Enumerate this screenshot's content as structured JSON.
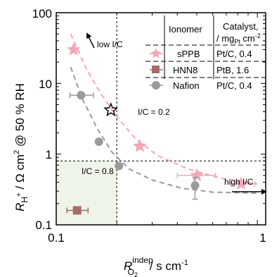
{
  "chart_data": {
    "type": "scatter",
    "xscale": "log",
    "yscale": "log",
    "xlim": [
      0.1,
      1.1
    ],
    "ylim": [
      0.1,
      100
    ],
    "x_ticks": [
      "0.1",
      "1"
    ],
    "y_ticks": [
      "0.1",
      "1",
      "10",
      "100"
    ],
    "xlabel": {
      "main": "R",
      "sub": "O",
      "sub2": "2",
      "sup": "indep",
      "unit": " /  s cm",
      "unit_sup": "-1"
    },
    "ylabel": {
      "main": "R",
      "sub": "H",
      "sub_sup": "+",
      "unit": " / Ω cm",
      "unit_sup": "2",
      "tail": " @ 50 % RH"
    },
    "legend": {
      "headers": {
        "ionomer": "Ionomer",
        "catalyst_line1": "Catalyst,",
        "catalyst_line2_a": "/ mg",
        "catalyst_line2_sub": "Pt",
        "catalyst_line2_b": " cm",
        "catalyst_line2_sup": "-2"
      },
      "rows": [
        {
          "name": "sPPB",
          "catalyst": "Pt/C, 0.4"
        },
        {
          "name": "HNN8",
          "catalyst": "PtB,  1.6"
        },
        {
          "name": "Nafion",
          "catalyst": "Pt/C, 0.4"
        }
      ]
    },
    "series": [
      {
        "name": "sPPB",
        "color": "#f4a7b9",
        "marker": "star",
        "points": [
          {
            "x": 0.122,
            "y": 30
          },
          {
            "x": 0.187,
            "y": 4.2,
            "highlight": true
          },
          {
            "x": 0.26,
            "y": 1.3
          },
          {
            "x": 0.5,
            "y": 0.5,
            "xerr": [
              0.4,
              0.62
            ]
          },
          {
            "x": 0.83,
            "y": 0.38,
            "xerr": [
              0.74,
              0.97
            ]
          }
        ],
        "fit": [
          [
            0.118,
            50
          ],
          [
            0.14,
            17
          ],
          [
            0.165,
            7.5
          ],
          [
            0.2,
            3.4
          ],
          [
            0.25,
            1.6
          ],
          [
            0.32,
            0.95
          ],
          [
            0.45,
            0.62
          ],
          [
            0.65,
            0.46
          ],
          [
            1.0,
            0.38
          ]
        ]
      },
      {
        "name": "HNN8",
        "color": "#a86a6a",
        "marker": "square",
        "points": [
          {
            "x": 0.127,
            "y": 0.16,
            "xerr": [
              0.113,
              0.144
            ]
          }
        ]
      },
      {
        "name": "Nafion",
        "color": "#9a9a9a",
        "marker": "circle",
        "points": [
          {
            "x": 0.133,
            "y": 6.8,
            "xerr": [
              0.117,
              0.153
            ]
          },
          {
            "x": 0.163,
            "y": 1.5
          },
          {
            "x": 0.205,
            "y": 0.68
          },
          {
            "x": 0.49,
            "y": 0.36,
            "yerr": [
              0.23,
              0.47
            ]
          }
        ],
        "fit": [
          [
            0.118,
            17
          ],
          [
            0.135,
            6
          ],
          [
            0.16,
            2.3
          ],
          [
            0.19,
            1.05
          ],
          [
            0.23,
            0.62
          ],
          [
            0.3,
            0.43
          ],
          [
            0.42,
            0.33
          ],
          [
            0.6,
            0.29
          ],
          [
            1.0,
            0.28
          ]
        ]
      }
    ],
    "reference_lines": {
      "x": 0.2,
      "y": 0.8
    },
    "shaded_region": {
      "x": [
        0.1,
        0.2
      ],
      "y": [
        0.1,
        0.8
      ],
      "color": "#eef4e8"
    },
    "annotations": {
      "low_ic": "low I/C",
      "high_ic": "high I/C",
      "ic_02": "I/C = 0.2",
      "ic_08": "I/C = 0.8"
    }
  }
}
